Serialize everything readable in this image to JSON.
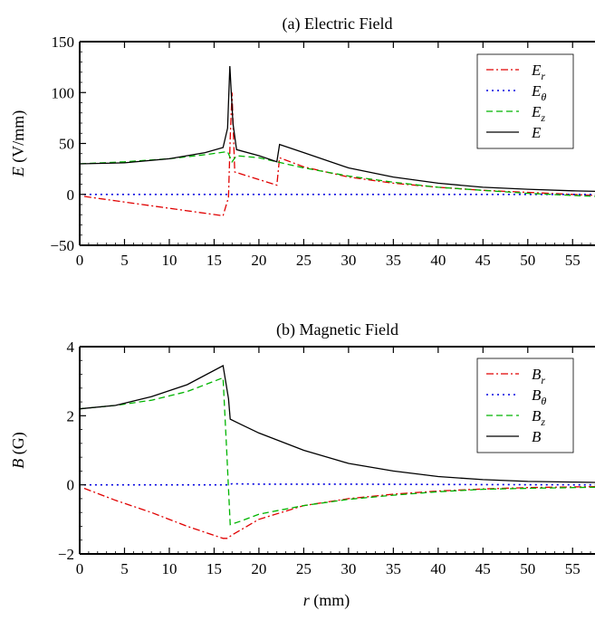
{
  "colors": {
    "r": "#e00000",
    "theta": "#0000e0",
    "z": "#00b400",
    "total": "#000000"
  },
  "chart_data": [
    {
      "type": "line",
      "title": "(a)  Electric Field",
      "ylabel": "E (V/mm)",
      "ylabel_main": "E",
      "ylabel_unit": " (V/mm)",
      "xlabel": "",
      "xlim": [
        0,
        57.5
      ],
      "ylim": [
        -50,
        150
      ],
      "xticks": [
        0,
        5,
        10,
        15,
        20,
        25,
        30,
        35,
        40,
        45,
        50,
        55
      ],
      "yticks": [
        -50,
        0,
        50,
        100,
        150
      ],
      "ytick_labels": [
        "−50",
        "0",
        "50",
        "100",
        "150"
      ],
      "legend_position": "top-right",
      "series": [
        {
          "name": "Er",
          "base": "E",
          "sub": "r",
          "color_key": "r",
          "dash": "8,3,2,3",
          "x": [
            0.5,
            16,
            16.6,
            16.8,
            17.0,
            17.3,
            22,
            22.3,
            25,
            30,
            35,
            40,
            45,
            50,
            55,
            57.5
          ],
          "y": [
            -2,
            -21,
            -3,
            55,
            100,
            22,
            9,
            36,
            27,
            17,
            11,
            7,
            4,
            2,
            0,
            -1
          ]
        },
        {
          "name": "Eθ",
          "base": "E",
          "sub": "θ",
          "color_key": "theta",
          "dash": "2,4",
          "x": [
            0.5,
            57.5
          ],
          "y": [
            0,
            0
          ]
        },
        {
          "name": "Ez",
          "base": "E",
          "sub": "z",
          "color_key": "z",
          "dash": "7,4",
          "x": [
            0,
            5,
            10,
            14,
            16.5,
            17.0,
            17.5,
            20,
            22.5,
            25,
            30,
            35,
            40,
            45,
            50,
            55,
            57.5
          ],
          "y": [
            30,
            32,
            35,
            39,
            42,
            32,
            38,
            36,
            31,
            26,
            18,
            12,
            7,
            4,
            1,
            -1,
            -2
          ]
        },
        {
          "name": "E",
          "base": "E",
          "sub": "",
          "color_key": "total",
          "dash": "",
          "x": [
            0,
            5,
            10,
            14,
            16,
            16.5,
            16.75,
            17.1,
            17.5,
            20,
            22,
            22.3,
            25,
            30,
            35,
            40,
            45,
            50,
            55,
            57.5
          ],
          "y": [
            30,
            31,
            35,
            41,
            46,
            65,
            126,
            70,
            44,
            38,
            32,
            49,
            41,
            26,
            17,
            11,
            7,
            5,
            3.5,
            3
          ]
        }
      ]
    },
    {
      "type": "line",
      "title": "(b)  Magnetic Field",
      "ylabel": "B (G)",
      "ylabel_main": "B",
      "ylabel_unit": " (G)",
      "xlabel": "r (mm)",
      "xlabel_main": "r",
      "xlabel_unit": " (mm)",
      "xlim": [
        0,
        57.5
      ],
      "ylim": [
        -2,
        4
      ],
      "xticks": [
        0,
        5,
        10,
        15,
        20,
        25,
        30,
        35,
        40,
        45,
        50,
        55
      ],
      "yticks": [
        -2,
        0,
        2,
        4
      ],
      "ytick_labels": [
        "−2",
        "0",
        "2",
        "4"
      ],
      "legend_position": "top-right",
      "series": [
        {
          "name": "Br",
          "base": "B",
          "sub": "r",
          "color_key": "r",
          "dash": "8,3,2,3",
          "x": [
            0.5,
            4,
            8,
            12,
            16,
            16.5,
            17,
            20,
            25,
            30,
            35,
            40,
            45,
            50,
            55,
            57.5
          ],
          "y": [
            -0.1,
            -0.45,
            -0.8,
            -1.2,
            -1.55,
            -1.55,
            -1.45,
            -1.0,
            -0.6,
            -0.4,
            -0.27,
            -0.18,
            -0.12,
            -0.08,
            -0.06,
            -0.05
          ]
        },
        {
          "name": "Bθ",
          "base": "B",
          "sub": "θ",
          "color_key": "theta",
          "dash": "2,4",
          "x": [
            0.5,
            16,
            16.5,
            17,
            20,
            30,
            40,
            57.5
          ],
          "y": [
            0,
            0,
            0,
            0.03,
            0.02,
            0.02,
            0.01,
            0
          ]
        },
        {
          "name": "Bz",
          "base": "B",
          "sub": "z",
          "color_key": "z",
          "dash": "7,4",
          "x": [
            0,
            4,
            8,
            12,
            16,
            16.4,
            16.8,
            18,
            20,
            25,
            30,
            35,
            40,
            45,
            50,
            55,
            57.5
          ],
          "y": [
            2.2,
            2.3,
            2.45,
            2.7,
            3.1,
            1.0,
            -1.15,
            -1.05,
            -0.85,
            -0.6,
            -0.42,
            -0.3,
            -0.2,
            -0.13,
            -0.1,
            -0.08,
            -0.07
          ]
        },
        {
          "name": "B",
          "base": "B",
          "sub": "",
          "color_key": "total",
          "dash": "",
          "x": [
            0,
            4,
            8,
            12,
            16,
            16.6,
            16.8,
            18,
            20,
            25,
            30,
            35,
            40,
            45,
            50,
            55,
            57.5
          ],
          "y": [
            2.2,
            2.3,
            2.55,
            2.9,
            3.45,
            2.5,
            1.9,
            1.75,
            1.5,
            1.0,
            0.62,
            0.4,
            0.24,
            0.15,
            0.1,
            0.08,
            0.07
          ]
        }
      ]
    }
  ]
}
